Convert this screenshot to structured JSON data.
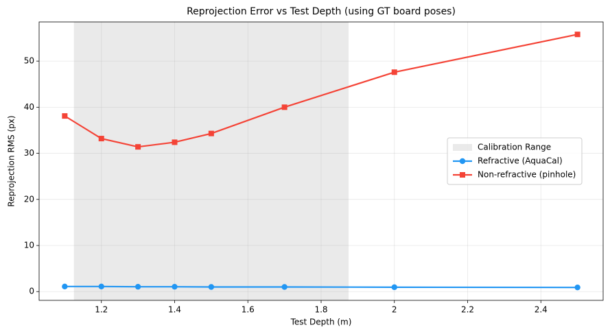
{
  "chart_data": {
    "type": "line",
    "title": "Reprojection Error vs Test Depth (using GT board poses)",
    "x_label": "Test Depth (m)",
    "y_label": "Reprojection RMS (px)",
    "x": [
      1.1,
      1.2,
      1.3,
      1.4,
      1.5,
      1.7,
      2.0,
      2.5
    ],
    "series": [
      {
        "name": "Refractive (AquaCal)",
        "color": "#2196f3",
        "marker": "circle",
        "values": [
          1.1,
          1.1,
          1.05,
          1.05,
          1.0,
          1.0,
          0.95,
          0.9
        ]
      },
      {
        "name": "Non-refractive (pinhole)",
        "color": "#f44336",
        "marker": "square",
        "values": [
          38.1,
          33.2,
          31.4,
          32.4,
          34.3,
          40.0,
          47.6,
          55.8
        ]
      }
    ],
    "span": {
      "name": "Calibration Range",
      "range": [
        1.125,
        1.875
      ],
      "color": "#d9d9d9"
    },
    "xlim": [
      1.03,
      2.57
    ],
    "xticks": [
      1.2,
      1.4,
      1.6,
      1.8,
      2.0,
      2.2,
      2.4
    ],
    "ylim": [
      -1.9,
      58.5
    ],
    "yticks": [
      0,
      10,
      20,
      30,
      40,
      50
    ],
    "grid": true,
    "legend": "center right"
  }
}
